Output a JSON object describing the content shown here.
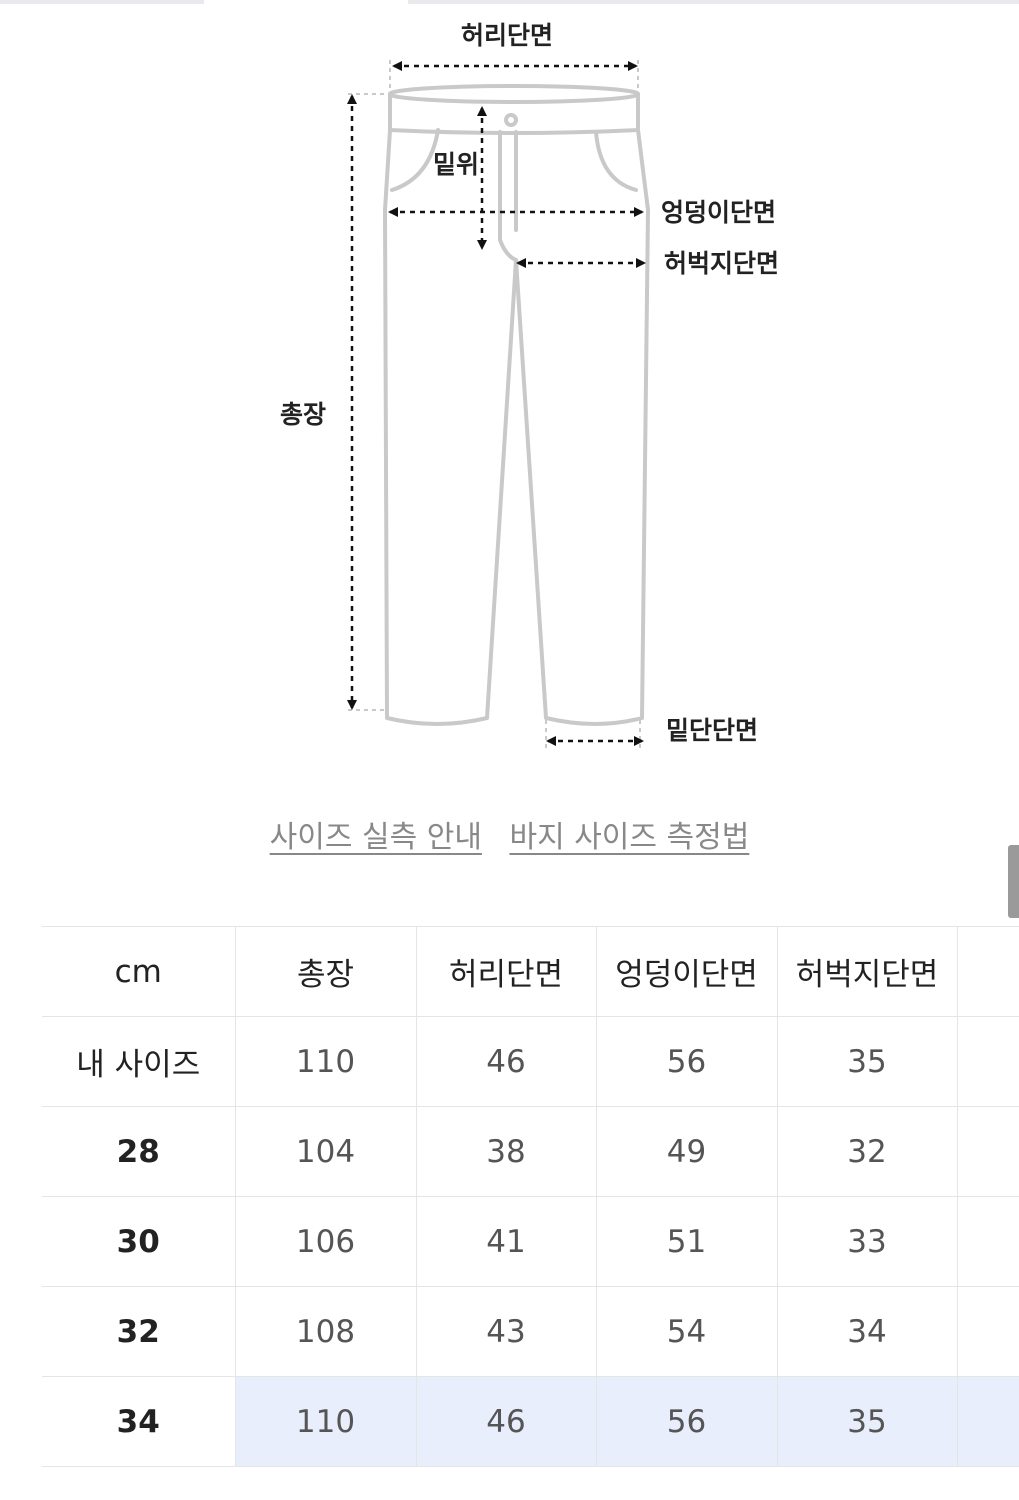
{
  "diagram": {
    "labels": {
      "waist": "허리단면",
      "rise": "밑위",
      "hip": "엉덩이단면",
      "thigh": "허벅지단면",
      "length": "총장",
      "hem": "밑단단면"
    }
  },
  "links": {
    "size_guide": "사이즈 실측 안내",
    "pants_measure": "바지 사이즈 측정법"
  },
  "table": {
    "headers": [
      "cm",
      "총장",
      "허리단면",
      "엉덩이단면",
      "허벅지단면"
    ],
    "rows": [
      {
        "label": "내 사이즈",
        "values": [
          "110",
          "46",
          "56",
          "35"
        ]
      },
      {
        "label": "28",
        "values": [
          "104",
          "38",
          "49",
          "32"
        ]
      },
      {
        "label": "30",
        "values": [
          "106",
          "41",
          "51",
          "33"
        ]
      },
      {
        "label": "32",
        "values": [
          "108",
          "43",
          "54",
          "34"
        ]
      },
      {
        "label": "34",
        "values": [
          "110",
          "46",
          "56",
          "35"
        ]
      }
    ]
  },
  "colors": {
    "highlight_row": "#e9eefc",
    "link_text": "#888888"
  }
}
